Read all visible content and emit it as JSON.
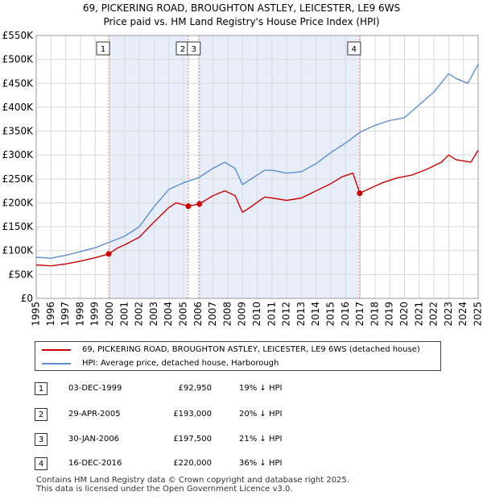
{
  "chart_data": {
    "type": "line",
    "title_lines": [
      "69, PICKERING ROAD, BROUGHTON ASTLEY, LEICESTER, LE9 6WS",
      "Price paid vs. HM Land Registry's House Price Index (HPI)"
    ],
    "xlim": [
      1995,
      2025
    ],
    "ylim": [
      0,
      550000
    ],
    "x_ticks": [
      1995,
      1996,
      1997,
      1998,
      1999,
      2000,
      2001,
      2002,
      2003,
      2004,
      2005,
      2006,
      2007,
      2008,
      2009,
      2010,
      2011,
      2012,
      2013,
      2014,
      2015,
      2016,
      2017,
      2018,
      2019,
      2020,
      2021,
      2022,
      2023,
      2024,
      2025
    ],
    "y_ticks": [
      {
        "value": 0,
        "label": "£0"
      },
      {
        "value": 50000,
        "label": "£50K"
      },
      {
        "value": 100000,
        "label": "£100K"
      },
      {
        "value": 150000,
        "label": "£150K"
      },
      {
        "value": 200000,
        "label": "£200K"
      },
      {
        "value": 250000,
        "label": "£250K"
      },
      {
        "value": 300000,
        "label": "£300K"
      },
      {
        "value": 350000,
        "label": "£350K"
      },
      {
        "value": 400000,
        "label": "£400K"
      },
      {
        "value": 450000,
        "label": "£450K"
      },
      {
        "value": 500000,
        "label": "£500K"
      },
      {
        "value": 550000,
        "label": "£550K"
      }
    ],
    "series": [
      {
        "name": "69, PICKERING ROAD, BROUGHTON ASTLEY, LEICESTER, LE9 6WS (detached house)",
        "color": "#cc0000",
        "points": [
          [
            1995,
            70000
          ],
          [
            1996,
            68000
          ],
          [
            1997,
            72000
          ],
          [
            1998,
            78000
          ],
          [
            1999,
            85000
          ],
          [
            1999.92,
            92950
          ],
          [
            2000.5,
            105000
          ],
          [
            2001,
            112000
          ],
          [
            2002,
            128000
          ],
          [
            2003,
            160000
          ],
          [
            2004,
            190000
          ],
          [
            2004.5,
            200000
          ],
          [
            2005.33,
            193000
          ],
          [
            2006.08,
            197500
          ],
          [
            2007,
            215000
          ],
          [
            2007.8,
            225000
          ],
          [
            2008.5,
            215000
          ],
          [
            2009,
            180000
          ],
          [
            2009.5,
            190000
          ],
          [
            2010.5,
            212000
          ],
          [
            2011,
            210000
          ],
          [
            2012,
            205000
          ],
          [
            2013,
            210000
          ],
          [
            2014,
            225000
          ],
          [
            2015,
            240000
          ],
          [
            2015.8,
            255000
          ],
          [
            2016.5,
            262000
          ],
          [
            2016.96,
            220000
          ],
          [
            2017.5,
            228000
          ],
          [
            2018.5,
            242000
          ],
          [
            2019.5,
            252000
          ],
          [
            2020.5,
            258000
          ],
          [
            2021.5,
            270000
          ],
          [
            2022.5,
            285000
          ],
          [
            2023,
            300000
          ],
          [
            2023.5,
            290000
          ],
          [
            2024.5,
            285000
          ],
          [
            2025,
            310000
          ]
        ]
      },
      {
        "name": "HPI: Average price, detached house, Harborough",
        "color": "#5b8fd0",
        "points": [
          [
            1995,
            86000
          ],
          [
            1996,
            84000
          ],
          [
            1997,
            90000
          ],
          [
            1998,
            98000
          ],
          [
            1999,
            106000
          ],
          [
            2000,
            118000
          ],
          [
            2001,
            130000
          ],
          [
            2002,
            150000
          ],
          [
            2003,
            192000
          ],
          [
            2004,
            228000
          ],
          [
            2005,
            242000
          ],
          [
            2006,
            252000
          ],
          [
            2007,
            272000
          ],
          [
            2007.8,
            285000
          ],
          [
            2008.5,
            272000
          ],
          [
            2009,
            238000
          ],
          [
            2009.5,
            248000
          ],
          [
            2010.5,
            268000
          ],
          [
            2011,
            268000
          ],
          [
            2012,
            262000
          ],
          [
            2013,
            265000
          ],
          [
            2014,
            282000
          ],
          [
            2015,
            305000
          ],
          [
            2016,
            325000
          ],
          [
            2017,
            348000
          ],
          [
            2018,
            362000
          ],
          [
            2019,
            372000
          ],
          [
            2020,
            378000
          ],
          [
            2021,
            405000
          ],
          [
            2022,
            432000
          ],
          [
            2023,
            470000
          ],
          [
            2023.5,
            460000
          ],
          [
            2024.3,
            450000
          ],
          [
            2025,
            490000
          ]
        ]
      }
    ],
    "sales": [
      {
        "id": "1",
        "x": 1999.92,
        "price": 92950
      },
      {
        "id": "2",
        "x": 2005.33,
        "price": 193000
      },
      {
        "id": "3",
        "x": 2006.08,
        "price": 197500
      },
      {
        "id": "4",
        "x": 2016.96,
        "price": 220000
      }
    ],
    "shaded_spans": [
      [
        1999.92,
        2005.33
      ],
      [
        2006.08,
        2016.96
      ]
    ]
  },
  "colors": {
    "property_line": "#cc0000",
    "hpi_line": "#5b8fd0",
    "shade": "#e8eef9",
    "grid": "#d9d9d9",
    "sale_marker_line": "#e08080"
  },
  "legend": {
    "property_label": "69, PICKERING ROAD, BROUGHTON ASTLEY, LEICESTER, LE9 6WS (detached house)",
    "hpi_label": "HPI: Average price, detached house, Harborough"
  },
  "transactions": [
    {
      "num": "1",
      "date": "03-DEC-1999",
      "price": "£92,950",
      "hpi": "19% ↓ HPI"
    },
    {
      "num": "2",
      "date": "29-APR-2005",
      "price": "£193,000",
      "hpi": "20% ↓ HPI"
    },
    {
      "num": "3",
      "date": "30-JAN-2006",
      "price": "£197,500",
      "hpi": "21% ↓ HPI"
    },
    {
      "num": "4",
      "date": "16-DEC-2016",
      "price": "£220,000",
      "hpi": "36% ↓ HPI"
    }
  ],
  "footer": {
    "line1": "Contains HM Land Registry data © Crown copyright and database right 2025.",
    "line2": "This data is licensed under the Open Government Licence v3.0."
  }
}
